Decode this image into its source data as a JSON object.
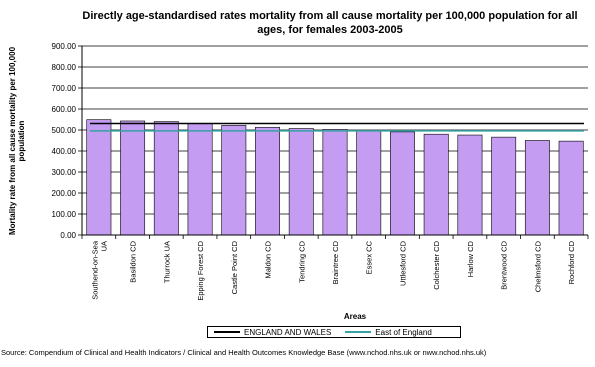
{
  "chart_data": {
    "type": "bar",
    "title": "Directly age-standardised rates mortality from all cause mortality per 100,000 population for all ages, for females 2003-2005",
    "xlabel": "Areas",
    "ylabel": "Mortality rate from all cause mortality per 100,000 population",
    "ylim": [
      0,
      900
    ],
    "yticks": [
      "0.00",
      "100.00",
      "200.00",
      "300.00",
      "400.00",
      "500.00",
      "600.00",
      "700.00",
      "800.00",
      "900.00"
    ],
    "grid": true,
    "categories": [
      "Southend-on-Sea UA",
      "Basildon CD",
      "Thurrock UA",
      "Epping Forest CD",
      "Castle Point CD",
      "Maldon CD",
      "Tendring CD",
      "Braintree CD",
      "Essex CC",
      "Uttlesford CD",
      "Colchester CD",
      "Harlow CD",
      "Brentwood CD",
      "Chelmsford CD",
      "Rochford CD"
    ],
    "series": [
      {
        "values": [
          549,
          543,
          540,
          531,
          522,
          513,
          507,
          503,
          495,
          491,
          480,
          476,
          466,
          450,
          447
        ],
        "color": "#c49cf2"
      }
    ],
    "reference_lines": [
      {
        "name": "ENGLAND AND WALES",
        "value": 531,
        "color": "#000000"
      },
      {
        "name": "East of England",
        "value": 496,
        "color": "#33a3a3"
      }
    ],
    "legend_position": "bottom"
  },
  "source_text": "Source: Compendium of Clinical and Health Indicators / Clinical and Health Outcomes Knowledge Base (www.nchod.nhs.uk or nww.nchod.nhs.uk)"
}
